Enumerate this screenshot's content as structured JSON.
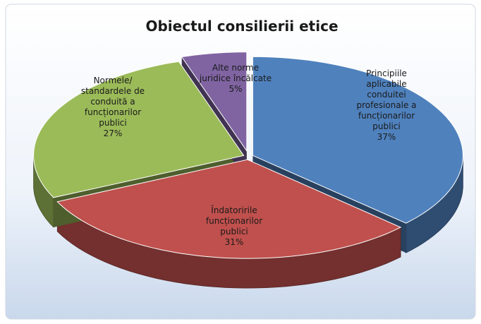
{
  "chart_data": {
    "type": "pie",
    "title": "Obiectul consilierii etice",
    "categories": [
      "Principiile\naplicabile\nconduitei\nprofesionale a\nfuncționarilor\npublici",
      "Îndatoririle\nfuncționarilor\npublici",
      "Normele/\nstandardele de\nconduită a\nfuncționarilor\npublici",
      "Alte norme\njuridice încălcate"
    ],
    "values": [
      37,
      31,
      27,
      5
    ],
    "value_labels": [
      "37%",
      "31%",
      "27%",
      "5%"
    ],
    "colors": [
      "#4f81bd",
      "#c0504d",
      "#9bbb59",
      "#8064a2"
    ]
  }
}
